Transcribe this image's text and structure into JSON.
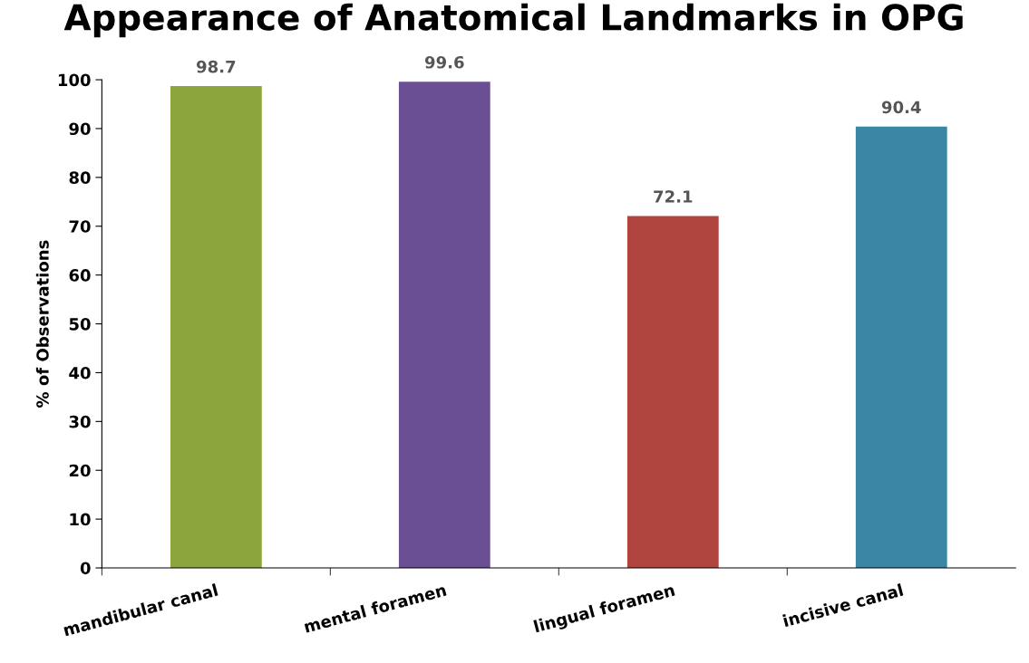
{
  "chart_data": {
    "type": "bar",
    "title": "Appearance of Anatomical Landmarks in OPG",
    "ylabel": "% of Observations",
    "categories": [
      "mandibular canal",
      "mental foramen",
      "lingual foramen",
      "incisive canal"
    ],
    "values": [
      98.7,
      99.6,
      72.1,
      90.4
    ],
    "colors": [
      "#8aa63c",
      "#6b4f94",
      "#b0443f",
      "#3a86a5"
    ],
    "ylim": [
      0,
      100
    ],
    "yticks": [
      0,
      10,
      20,
      30,
      40,
      50,
      60,
      70,
      80,
      90,
      100
    ],
    "grid": false,
    "data_labels": true
  }
}
